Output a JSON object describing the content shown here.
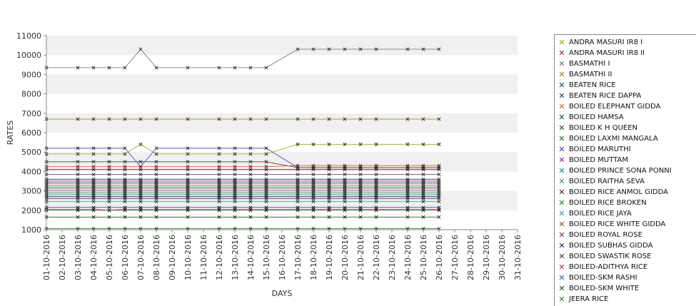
{
  "chart_data": {
    "type": "line",
    "title": "",
    "xlabel": "DAYS",
    "ylabel": "RATES",
    "ylim": [
      1000,
      11000
    ],
    "yticks": [
      1000,
      2000,
      3000,
      4000,
      5000,
      6000,
      7000,
      8000,
      9000,
      10000,
      11000
    ],
    "grid": "horizontal alternating bands",
    "legend_position": "right",
    "x": [
      "01-10-2016",
      "02-10-2016",
      "03-10-2016",
      "04-10-2016",
      "05-10-2016",
      "06-10-2016",
      "07-10-2016",
      "08-10-2016",
      "09-10-2016",
      "10-10-2016",
      "11-10-2016",
      "12-10-2016",
      "13-10-2016",
      "14-10-2016",
      "15-10-2016",
      "16-10-2016",
      "17-10-2016",
      "18-10-2016",
      "19-10-2016",
      "20-10-2016",
      "21-10-2016",
      "22-10-2016",
      "23-10-2016",
      "24-10-2016",
      "25-10-2016",
      "26-10-2016",
      "27-10-2016",
      "28-10-2016",
      "29-10-2016",
      "30-10-2016",
      "31-10-2016"
    ],
    "series": [
      {
        "name": "ANDRA MASURI IR8 I",
        "color": "#a0a000",
        "values": [
          4900,
          null,
          4900,
          4900,
          4900,
          4900,
          5400,
          4900,
          null,
          4900,
          null,
          4900,
          4900,
          4900,
          4900,
          null,
          5400,
          5400,
          5400,
          5400,
          5400,
          5400,
          null,
          5400,
          5400,
          5400,
          null,
          null,
          null,
          null,
          null
        ]
      },
      {
        "name": "ANDRA MASURI IR8 II",
        "color": "#8b1a4a",
        "values": [
          4500,
          null,
          4500,
          4500,
          4500,
          4500,
          4500,
          4500,
          null,
          4500,
          null,
          4500,
          4500,
          4500,
          4500,
          null,
          4200,
          4200,
          4200,
          4200,
          4200,
          4200,
          null,
          4200,
          4200,
          4200,
          null,
          null,
          null,
          null,
          null
        ]
      },
      {
        "name": "BASMATHI I",
        "color": "#607080",
        "values": [
          9350,
          null,
          9350,
          9350,
          9350,
          9350,
          10300,
          9350,
          null,
          9350,
          null,
          9350,
          9350,
          9350,
          9350,
          null,
          10300,
          10300,
          10300,
          10300,
          10300,
          10300,
          null,
          10300,
          10300,
          10300,
          null,
          null,
          null,
          null,
          null
        ]
      },
      {
        "name": "BASMATHI II",
        "color": "#9a7a00",
        "values": [
          6700,
          null,
          6700,
          6700,
          6700,
          6700,
          6700,
          6700,
          null,
          6700,
          null,
          6700,
          6700,
          6700,
          6700,
          null,
          6700,
          6700,
          6700,
          6700,
          6700,
          6700,
          null,
          6700,
          6700,
          6700,
          null,
          null,
          null,
          null,
          null
        ]
      },
      {
        "name": "BEATEN RICE",
        "color": "#0a3a4a",
        "values": [
          3400,
          null,
          3400,
          3400,
          3400,
          3400,
          3400,
          3400,
          null,
          3400,
          null,
          3400,
          3400,
          3400,
          3400,
          null,
          3400,
          3400,
          3400,
          3400,
          3400,
          3400,
          null,
          3400,
          3400,
          3400,
          null,
          null,
          null,
          null,
          null
        ]
      },
      {
        "name": "BEATEN RICE DAPPA",
        "color": "#1a2a5a",
        "values": [
          3600,
          null,
          3600,
          3600,
          3600,
          3600,
          3600,
          3600,
          null,
          3600,
          null,
          3600,
          3600,
          3600,
          3600,
          null,
          3600,
          3600,
          3600,
          3600,
          3600,
          3600,
          null,
          3600,
          3600,
          3600,
          null,
          null,
          null,
          null,
          null
        ]
      },
      {
        "name": "BOILED ELEPHANT GIDDA",
        "color": "#c86400",
        "values": [
          4250,
          null,
          4250,
          4250,
          4250,
          4250,
          4250,
          4250,
          null,
          4250,
          null,
          4250,
          4250,
          4250,
          4250,
          null,
          4300,
          4300,
          4300,
          4300,
          4300,
          4300,
          null,
          4300,
          4300,
          4300,
          null,
          null,
          null,
          null,
          null
        ]
      },
      {
        "name": "BOILED HAMSA",
        "color": "#004a4a",
        "values": [
          3200,
          null,
          3200,
          3200,
          3200,
          3200,
          3200,
          3200,
          null,
          3200,
          null,
          3200,
          3200,
          3200,
          3200,
          null,
          3200,
          3200,
          3200,
          3200,
          3200,
          3200,
          null,
          3200,
          3200,
          3200,
          null,
          null,
          null,
          null,
          null
        ]
      },
      {
        "name": "BOILED K H QUEEN",
        "color": "#5a2a1a",
        "values": [
          4100,
          null,
          4100,
          4100,
          4100,
          4100,
          4100,
          4100,
          null,
          4100,
          null,
          4100,
          4100,
          4100,
          4100,
          null,
          4100,
          4100,
          4100,
          4100,
          4100,
          4100,
          null,
          4100,
          4100,
          4100,
          null,
          null,
          null,
          null,
          null
        ]
      },
      {
        "name": "BOILED LAXMI MANGALA",
        "color": "#1a6a1a",
        "values": [
          1650,
          null,
          1650,
          1650,
          1650,
          1650,
          1650,
          1650,
          null,
          1650,
          null,
          1650,
          1650,
          1650,
          1650,
          null,
          1650,
          1650,
          1650,
          1650,
          1650,
          1650,
          null,
          1650,
          1650,
          1650,
          null,
          null,
          null,
          null,
          null
        ]
      },
      {
        "name": "BOILED MARUTHI",
        "color": "#3a3ac8",
        "values": [
          5200,
          null,
          5200,
          5200,
          5200,
          5200,
          4250,
          5200,
          null,
          5200,
          null,
          5200,
          5200,
          5200,
          5200,
          null,
          4200,
          4200,
          4200,
          4200,
          4200,
          4200,
          null,
          4200,
          4200,
          4200,
          null,
          null,
          null,
          null,
          null
        ]
      },
      {
        "name": "BOILED MUTTAM",
        "color": "#8a1a8a",
        "values": [
          3000,
          null,
          3000,
          3000,
          3000,
          3000,
          3000,
          3000,
          null,
          3000,
          null,
          3000,
          3000,
          3000,
          3000,
          null,
          3000,
          3000,
          3000,
          3000,
          3000,
          3000,
          null,
          3000,
          3000,
          3000,
          null,
          null,
          null,
          null,
          null
        ]
      },
      {
        "name": "BOILED PRINCE SONA PONNI",
        "color": "#008a8a",
        "values": [
          2800,
          null,
          2800,
          2800,
          2800,
          2800,
          2800,
          2800,
          null,
          2800,
          null,
          2800,
          2800,
          2800,
          2800,
          null,
          2800,
          2800,
          2800,
          2800,
          2800,
          2800,
          null,
          2800,
          2800,
          2800,
          null,
          null,
          null,
          null,
          null
        ]
      },
      {
        "name": "BOILED RAITHA SEVA",
        "color": "#3a8a5a",
        "values": [
          2900,
          null,
          2900,
          2900,
          2900,
          2900,
          2900,
          2900,
          null,
          2900,
          null,
          2900,
          2900,
          2900,
          2900,
          null,
          2900,
          2900,
          2900,
          2900,
          2900,
          2900,
          null,
          2900,
          2900,
          2900,
          null,
          null,
          null,
          null,
          null
        ]
      },
      {
        "name": "BOILED RICE ANMOL GIDDA",
        "color": "#4a004a",
        "values": [
          3500,
          null,
          3500,
          3500,
          3500,
          3500,
          3500,
          3500,
          null,
          3500,
          null,
          3500,
          3500,
          3500,
          3500,
          null,
          3500,
          3500,
          3500,
          3500,
          3500,
          3500,
          null,
          3500,
          3500,
          3500,
          null,
          null,
          null,
          null,
          null
        ]
      },
      {
        "name": "BOILED RICE BROKEN",
        "color": "#2a6a2a",
        "values": [
          1050,
          null,
          1050,
          1050,
          1050,
          1050,
          1050,
          1050,
          null,
          1050,
          null,
          1050,
          1050,
          1050,
          1050,
          null,
          1050,
          1050,
          1050,
          1050,
          1050,
          1050,
          null,
          1050,
          1050,
          1050,
          null,
          null,
          null,
          null,
          null
        ]
      },
      {
        "name": "BOILED RICE JAYA",
        "color": "#1a9a9a",
        "values": [
          2450,
          null,
          2450,
          2450,
          2450,
          2450,
          2450,
          2450,
          null,
          2450,
          null,
          2450,
          2450,
          2450,
          2450,
          null,
          2450,
          2450,
          2450,
          2450,
          2450,
          2450,
          null,
          2450,
          2450,
          2450,
          null,
          null,
          null,
          null,
          null
        ]
      },
      {
        "name": "BOILED RICE WHITE GIDDA",
        "color": "#8a4a1a",
        "values": [
          3300,
          null,
          3300,
          3300,
          3300,
          3300,
          3300,
          3300,
          null,
          3300,
          null,
          3300,
          3300,
          3300,
          3300,
          null,
          3300,
          3300,
          3300,
          3300,
          3300,
          3300,
          null,
          3300,
          3300,
          3300,
          null,
          null,
          null,
          null,
          null
        ]
      },
      {
        "name": "BOILED ROYAL ROSE",
        "color": "#6a2a4a",
        "values": [
          3850,
          null,
          3850,
          3850,
          3850,
          3850,
          3850,
          3850,
          null,
          3850,
          null,
          3850,
          3850,
          3850,
          3850,
          null,
          3850,
          3850,
          3850,
          3850,
          3850,
          3850,
          null,
          3850,
          3850,
          3850,
          null,
          null,
          null,
          null,
          null
        ]
      },
      {
        "name": "BOILED SUBHAS GIDDA",
        "color": "#1a1a6a",
        "values": [
          2700,
          null,
          2700,
          2700,
          2700,
          2700,
          2700,
          2700,
          null,
          2700,
          null,
          2700,
          2700,
          2700,
          2700,
          null,
          2700,
          2700,
          2700,
          2700,
          2700,
          2700,
          null,
          2700,
          2700,
          2700,
          null,
          null,
          null,
          null,
          null
        ]
      },
      {
        "name": "BOILED SWASTIK ROSE",
        "color": "#5a1a5a",
        "values": [
          2600,
          null,
          2600,
          2600,
          2600,
          2600,
          2600,
          2600,
          null,
          2600,
          null,
          2600,
          2600,
          2600,
          2600,
          null,
          2600,
          2600,
          2600,
          2600,
          2600,
          2600,
          null,
          2600,
          2600,
          2600,
          null,
          null,
          null,
          null,
          null
        ]
      },
      {
        "name": "BOILED-ADITHYA RICE",
        "color": "#c81a6a",
        "values": [
          2050,
          null,
          2050,
          2050,
          2000,
          2050,
          2050,
          2050,
          null,
          2050,
          null,
          2050,
          2050,
          2050,
          2050,
          null,
          2050,
          2050,
          2050,
          2050,
          2050,
          2050,
          null,
          2050,
          2050,
          2050,
          null,
          null,
          null,
          null,
          null
        ]
      },
      {
        "name": "BOILED-SKM RASHI",
        "color": "#1a5aaa",
        "values": [
          2150,
          null,
          2150,
          2150,
          2150,
          2150,
          2150,
          2150,
          null,
          2150,
          null,
          2150,
          2150,
          2150,
          2150,
          null,
          2150,
          2150,
          2150,
          2150,
          2150,
          2150,
          null,
          2150,
          2150,
          2150,
          null,
          null,
          null,
          null,
          null
        ]
      },
      {
        "name": "BOILED-SKM WHITE",
        "color": "#3a3a1a",
        "values": [
          3100,
          null,
          3100,
          3100,
          3100,
          3100,
          3100,
          3100,
          null,
          3100,
          null,
          3100,
          3100,
          3100,
          3100,
          null,
          3100,
          3100,
          3100,
          3100,
          3100,
          3100,
          null,
          3100,
          3100,
          3100,
          null,
          null,
          null,
          null,
          null
        ]
      },
      {
        "name": "JEERA RICE",
        "color": "#3a7a3a",
        "values": [
          2000,
          null,
          2000,
          2000,
          2000,
          2000,
          2000,
          2000,
          null,
          2000,
          null,
          2000,
          2000,
          2000,
          2000,
          null,
          2000,
          2000,
          2000,
          2000,
          2000,
          2000,
          null,
          2000,
          2000,
          2000,
          null,
          null,
          null,
          null,
          null
        ]
      }
    ]
  }
}
